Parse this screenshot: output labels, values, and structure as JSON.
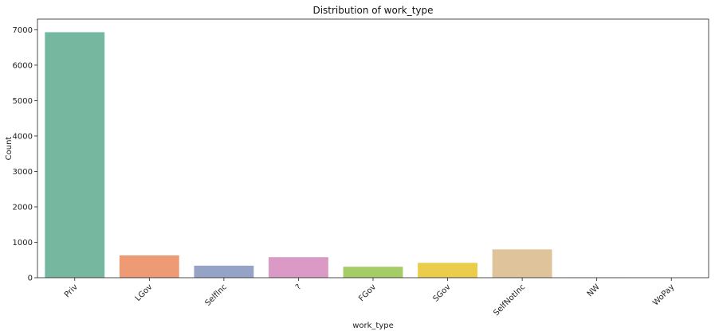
{
  "chart_data": {
    "type": "bar",
    "title": "Distribution of work_type",
    "xlabel": "work_type",
    "ylabel": "Count",
    "categories": [
      "Priv",
      "LGov",
      "SelfInc",
      "?",
      "FGov",
      "SGov",
      "SelfNotInc",
      "NW",
      "WoPay"
    ],
    "values": [
      6930,
      630,
      340,
      580,
      310,
      420,
      800,
      3,
      2
    ],
    "colors": [
      "#76b7a0",
      "#ee9b75",
      "#95a3c6",
      "#db9ac5",
      "#a5cc65",
      "#e9cd4b",
      "#dec39b",
      "#b3b3b3",
      "#b3b3b3"
    ],
    "ylim": [
      0,
      7300
    ],
    "yticks": [
      0,
      1000,
      2000,
      3000,
      4000,
      5000,
      6000,
      7000
    ],
    "grid": false,
    "xtick_rotation": 45
  }
}
